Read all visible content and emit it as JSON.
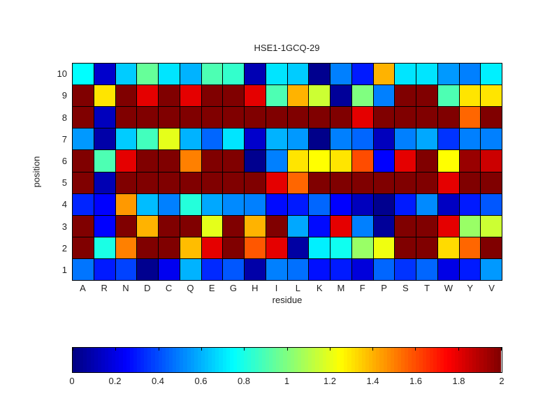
{
  "chart_data": {
    "type": "heatmap",
    "title": "HSE1-1GCQ-29",
    "xlabel": "residue",
    "ylabel": "position",
    "x_categories": [
      "A",
      "R",
      "N",
      "D",
      "C",
      "Q",
      "E",
      "G",
      "H",
      "I",
      "L",
      "K",
      "M",
      "F",
      "P",
      "S",
      "T",
      "W",
      "Y",
      "V"
    ],
    "y_categories": [
      "10",
      "9",
      "8",
      "7",
      "6",
      "5",
      "4",
      "3",
      "2",
      "1"
    ],
    "colormap": "jet",
    "grid_lines": true,
    "legend_position": "bottom-colorbar",
    "colorbar": {
      "min": 0,
      "max": 2,
      "tick_values": [
        0,
        0.2,
        0.4,
        0.6,
        0.8,
        1,
        1.2,
        1.4,
        1.6,
        1.8,
        2
      ],
      "tick_labels": [
        "0",
        "0.2",
        "0.4",
        "0.6",
        "0.8",
        "1",
        "1.2",
        "1.4",
        "1.6",
        "1.8",
        "2"
      ]
    },
    "values_rows_top_to_bottom": [
      [
        0.75,
        0.15,
        0.65,
        0.95,
        0.7,
        0.6,
        0.9,
        0.85,
        0.1,
        0.7,
        0.65,
        0.03,
        0.5,
        0.3,
        1.4,
        0.7,
        0.7,
        0.55,
        0.5,
        0.72
      ],
      [
        2.0,
        1.3,
        2.0,
        1.8,
        2.0,
        1.8,
        2.0,
        2.0,
        1.8,
        0.9,
        1.4,
        1.15,
        0.05,
        1.0,
        0.5,
        2.0,
        2.0,
        0.9,
        1.3,
        1.3
      ],
      [
        2.0,
        0.12,
        2.0,
        2.0,
        2.0,
        2.0,
        2.0,
        2.0,
        2.0,
        2.0,
        2.0,
        2.0,
        2.0,
        1.8,
        2.0,
        2.0,
        2.0,
        2.0,
        1.55,
        2.0
      ],
      [
        0.55,
        0.08,
        0.65,
        0.88,
        1.2,
        0.6,
        0.45,
        0.7,
        0.15,
        0.6,
        0.55,
        0.02,
        0.5,
        0.45,
        0.12,
        0.5,
        0.58,
        0.35,
        0.5,
        0.5
      ],
      [
        2.0,
        0.9,
        1.8,
        2.0,
        2.0,
        1.5,
        2.0,
        2.0,
        0.03,
        0.5,
        1.3,
        1.25,
        1.3,
        1.6,
        0.25,
        1.8,
        2.0,
        1.25,
        1.95,
        1.85
      ],
      [
        2.0,
        0.1,
        2.0,
        2.0,
        2.0,
        2.0,
        2.0,
        2.0,
        2.0,
        1.8,
        1.55,
        2.0,
        2.0,
        2.0,
        2.0,
        2.0,
        2.0,
        1.8,
        2.0,
        2.0
      ],
      [
        0.32,
        0.25,
        1.45,
        0.62,
        0.5,
        0.82,
        0.58,
        0.52,
        0.5,
        0.27,
        0.3,
        0.45,
        0.25,
        0.12,
        0.03,
        0.3,
        0.52,
        0.13,
        0.3,
        0.42
      ],
      [
        2.0,
        0.25,
        2.0,
        1.4,
        2.0,
        2.0,
        1.2,
        2.0,
        1.4,
        2.0,
        0.58,
        0.27,
        1.8,
        0.5,
        0.05,
        2.0,
        2.0,
        1.8,
        1.05,
        1.15
      ],
      [
        2.0,
        0.8,
        1.5,
        2.0,
        2.0,
        1.38,
        1.8,
        2.0,
        1.58,
        1.8,
        0.07,
        0.72,
        0.78,
        1.05,
        1.22,
        2.0,
        2.0,
        1.32,
        1.55,
        2.0
      ],
      [
        0.48,
        0.3,
        0.38,
        0.03,
        0.22,
        0.6,
        0.33,
        0.42,
        0.08,
        0.5,
        0.47,
        0.28,
        0.3,
        0.18,
        0.45,
        0.35,
        0.45,
        0.2,
        0.3,
        0.55
      ]
    ],
    "colors": {
      "grid_line": "#000000",
      "axes_text": "#1f1f1f",
      "background": "#ffffff",
      "jet_min": "#000099",
      "jet_max": "#800000"
    }
  }
}
